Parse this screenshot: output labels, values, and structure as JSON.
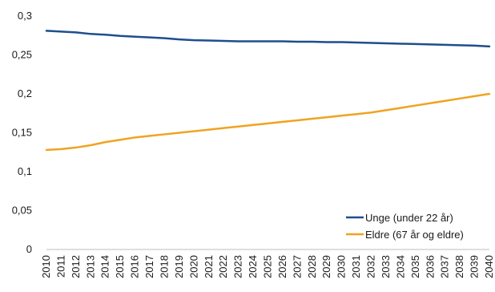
{
  "chart_data": {
    "type": "line",
    "title": "",
    "xlabel": "",
    "ylabel": "",
    "ylim": [
      0,
      0.3
    ],
    "y_ticks": [
      0,
      0.05,
      0.1,
      0.15,
      0.2,
      0.25,
      0.3
    ],
    "y_tick_labels": [
      "0",
      "0,05",
      "0,1",
      "0,15",
      "0,2",
      "0,25",
      "0,3"
    ],
    "grid": false,
    "legend_position": "bottom-right",
    "x": [
      2010,
      2011,
      2012,
      2013,
      2014,
      2015,
      2016,
      2017,
      2018,
      2019,
      2020,
      2021,
      2022,
      2023,
      2024,
      2025,
      2026,
      2027,
      2028,
      2029,
      2030,
      2031,
      2032,
      2033,
      2034,
      2035,
      2036,
      2037,
      2038,
      2039,
      2040
    ],
    "series": [
      {
        "name": "Unge (under 22 år)",
        "color": "#1f4e8c",
        "values": [
          0.281,
          0.28,
          0.279,
          0.277,
          0.276,
          0.2745,
          0.2735,
          0.2725,
          0.2715,
          0.27,
          0.269,
          0.2685,
          0.268,
          0.2675,
          0.2675,
          0.2675,
          0.2675,
          0.267,
          0.267,
          0.2665,
          0.2665,
          0.266,
          0.2655,
          0.265,
          0.2645,
          0.264,
          0.2635,
          0.263,
          0.2625,
          0.262,
          0.261
        ]
      },
      {
        "name": "Eldre (67 år og eldre)",
        "color": "#f0a320",
        "values": [
          0.128,
          0.129,
          0.131,
          0.134,
          0.138,
          0.141,
          0.144,
          0.146,
          0.148,
          0.15,
          0.152,
          0.154,
          0.156,
          0.158,
          0.16,
          0.162,
          0.164,
          0.166,
          0.168,
          0.17,
          0.172,
          0.174,
          0.176,
          0.179,
          0.182,
          0.185,
          0.188,
          0.191,
          0.194,
          0.197,
          0.2
        ]
      }
    ]
  }
}
